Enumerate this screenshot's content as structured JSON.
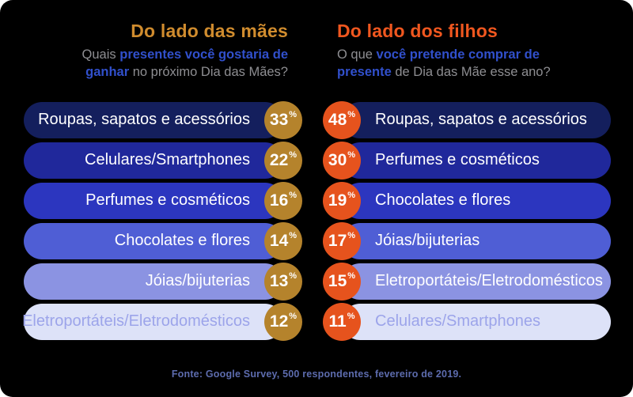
{
  "percent_sign": "%",
  "row_colors": [
    "#141f5d",
    "#20289b",
    "#2c36bf",
    "#4f5ed5",
    "#8b93e2",
    "#dde2f8"
  ],
  "muted_label_color": "#9ca4ea",
  "subtitle_colors": {
    "gray": "#8e8e92",
    "blue": "#3150cc"
  },
  "left": {
    "title": "Do lado das mães",
    "title_color": "#d08c2e",
    "badge_color": "#b5832c",
    "subtitle_parts": [
      {
        "text": "Quais ",
        "style": "gray"
      },
      {
        "text": "presentes você gostaria de ganhar",
        "style": "blue"
      },
      {
        "text": " no próximo Dia das Mães?",
        "style": "gray"
      }
    ],
    "rows": [
      {
        "label": "Roupas, sapatos e acessórios",
        "value": "33",
        "muted": false
      },
      {
        "label": "Celulares/Smartphones",
        "value": "22",
        "muted": false
      },
      {
        "label": "Perfumes e cosméticos",
        "value": "16",
        "muted": false
      },
      {
        "label": "Chocolates e flores",
        "value": "14",
        "muted": false
      },
      {
        "label": "Jóias/bijuterias",
        "value": "13",
        "muted": false
      },
      {
        "label": "Eletroportáteis/Eletrodomésticos",
        "value": "12",
        "muted": true
      }
    ]
  },
  "right": {
    "title": "Do lado dos filhos",
    "title_color": "#f0571f",
    "badge_color": "#e6531d",
    "subtitle_parts": [
      {
        "text": "O que ",
        "style": "gray"
      },
      {
        "text": "você pretende comprar de presente",
        "style": "blue"
      },
      {
        "text": " de Dia das Mãe esse ano?",
        "style": "gray"
      }
    ],
    "rows": [
      {
        "label": "Roupas, sapatos e acessórios",
        "value": "48",
        "muted": false
      },
      {
        "label": "Perfumes e cosméticos",
        "value": "30",
        "muted": false
      },
      {
        "label": "Chocolates e flores",
        "value": "19",
        "muted": false
      },
      {
        "label": "Jóias/bijuterias",
        "value": "17",
        "muted": false
      },
      {
        "label": "Eletroportáteis/Eletrodomésticos",
        "value": "15",
        "muted": false
      },
      {
        "label": "Celulares/Smartphones",
        "value": "11",
        "muted": true
      }
    ]
  },
  "footer": "Fonte: Google Survey, 500 respondentes, fevereiro de 2019.",
  "chart_data": {
    "type": "bar",
    "title": "Presentes de Dia das Mães: mães vs filhos",
    "unit": "%",
    "series": [
      {
        "name": "Do lado das mães",
        "question": "Quais presentes você gostaria de ganhar no próximo Dia das Mães?",
        "categories": [
          "Roupas, sapatos e acessórios",
          "Celulares/Smartphones",
          "Perfumes e cosméticos",
          "Chocolates e flores",
          "Jóias/bijuterias",
          "Eletroportáteis/Eletrodomésticos"
        ],
        "values": [
          33,
          22,
          16,
          14,
          13,
          12
        ]
      },
      {
        "name": "Do lado dos filhos",
        "question": "O que você pretende comprar de presente de Dia das Mãe esse ano?",
        "categories": [
          "Roupas, sapatos e acessórios",
          "Perfumes e cosméticos",
          "Chocolates e flores",
          "Jóias/bijuterias",
          "Eletroportáteis/Eletrodomésticos",
          "Celulares/Smartphones"
        ],
        "values": [
          48,
          30,
          19,
          17,
          15,
          11
        ]
      }
    ],
    "source": "Fonte: Google Survey, 500 respondentes, fevereiro de 2019.",
    "ylim": [
      0,
      100
    ],
    "legend_position": "top",
    "grid": false
  }
}
